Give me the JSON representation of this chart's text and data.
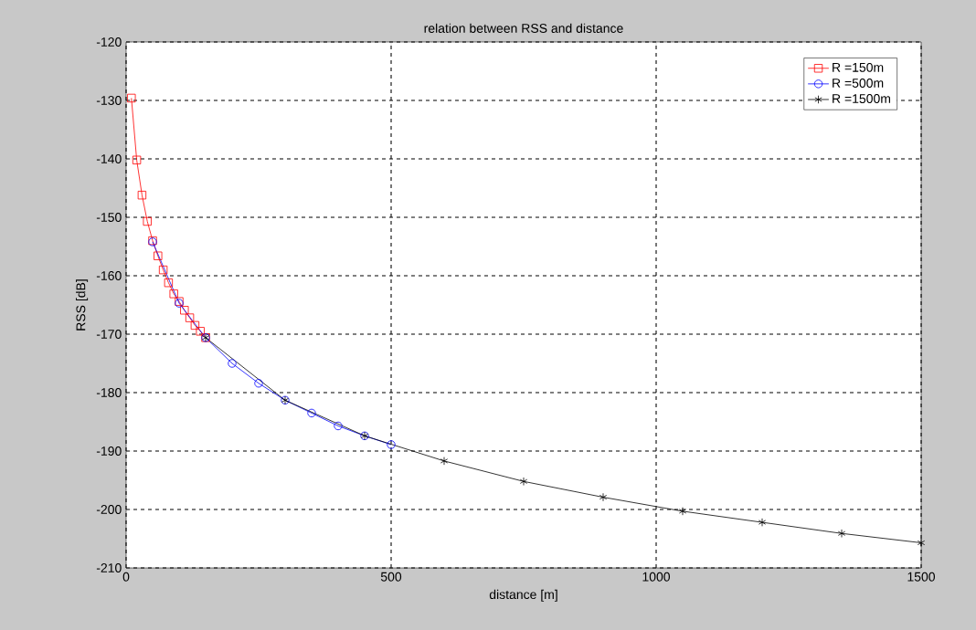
{
  "chart_data": {
    "type": "line",
    "title": "relation between RSS and distance",
    "xlabel": "distance [m]",
    "ylabel": "RSS [dB]",
    "xlim": [
      0,
      1500
    ],
    "ylim": [
      -210,
      -120
    ],
    "xticks": [
      0,
      500,
      1000,
      1500
    ],
    "yticks": [
      -210,
      -200,
      -190,
      -180,
      -170,
      -160,
      -150,
      -140,
      -130,
      -120
    ],
    "grid": true,
    "legend": "top right",
    "line_style": "solid",
    "series": [
      {
        "name": "R =150m",
        "color": "#ff0000",
        "marker": "square",
        "x": [
          10,
          20,
          30,
          40,
          50,
          60,
          70,
          80,
          90,
          100,
          110,
          120,
          130,
          140,
          150
        ],
        "values": [
          -129.6,
          -140.2,
          -146.2,
          -150.7,
          -154.0,
          -156.6,
          -159.0,
          -161.2,
          -163.1,
          -164.4,
          -165.9,
          -167.2,
          -168.5,
          -169.5,
          -170.6
        ]
      },
      {
        "name": "R =500m",
        "color": "#0000ff",
        "marker": "circle",
        "x": [
          50,
          100,
          150,
          200,
          250,
          300,
          350,
          400,
          450,
          500
        ],
        "values": [
          -154.2,
          -164.7,
          -170.6,
          -175.0,
          -178.4,
          -181.3,
          -183.5,
          -185.7,
          -187.4,
          -188.9
        ]
      },
      {
        "name": "R =1500m",
        "color": "#000000",
        "marker": "cross",
        "x": [
          150,
          300,
          450,
          600,
          750,
          900,
          1050,
          1200,
          1350,
          1500
        ],
        "values": [
          -170.6,
          -181.3,
          -187.4,
          -191.7,
          -195.2,
          -197.9,
          -200.3,
          -202.2,
          -204.1,
          -205.7
        ]
      }
    ]
  }
}
